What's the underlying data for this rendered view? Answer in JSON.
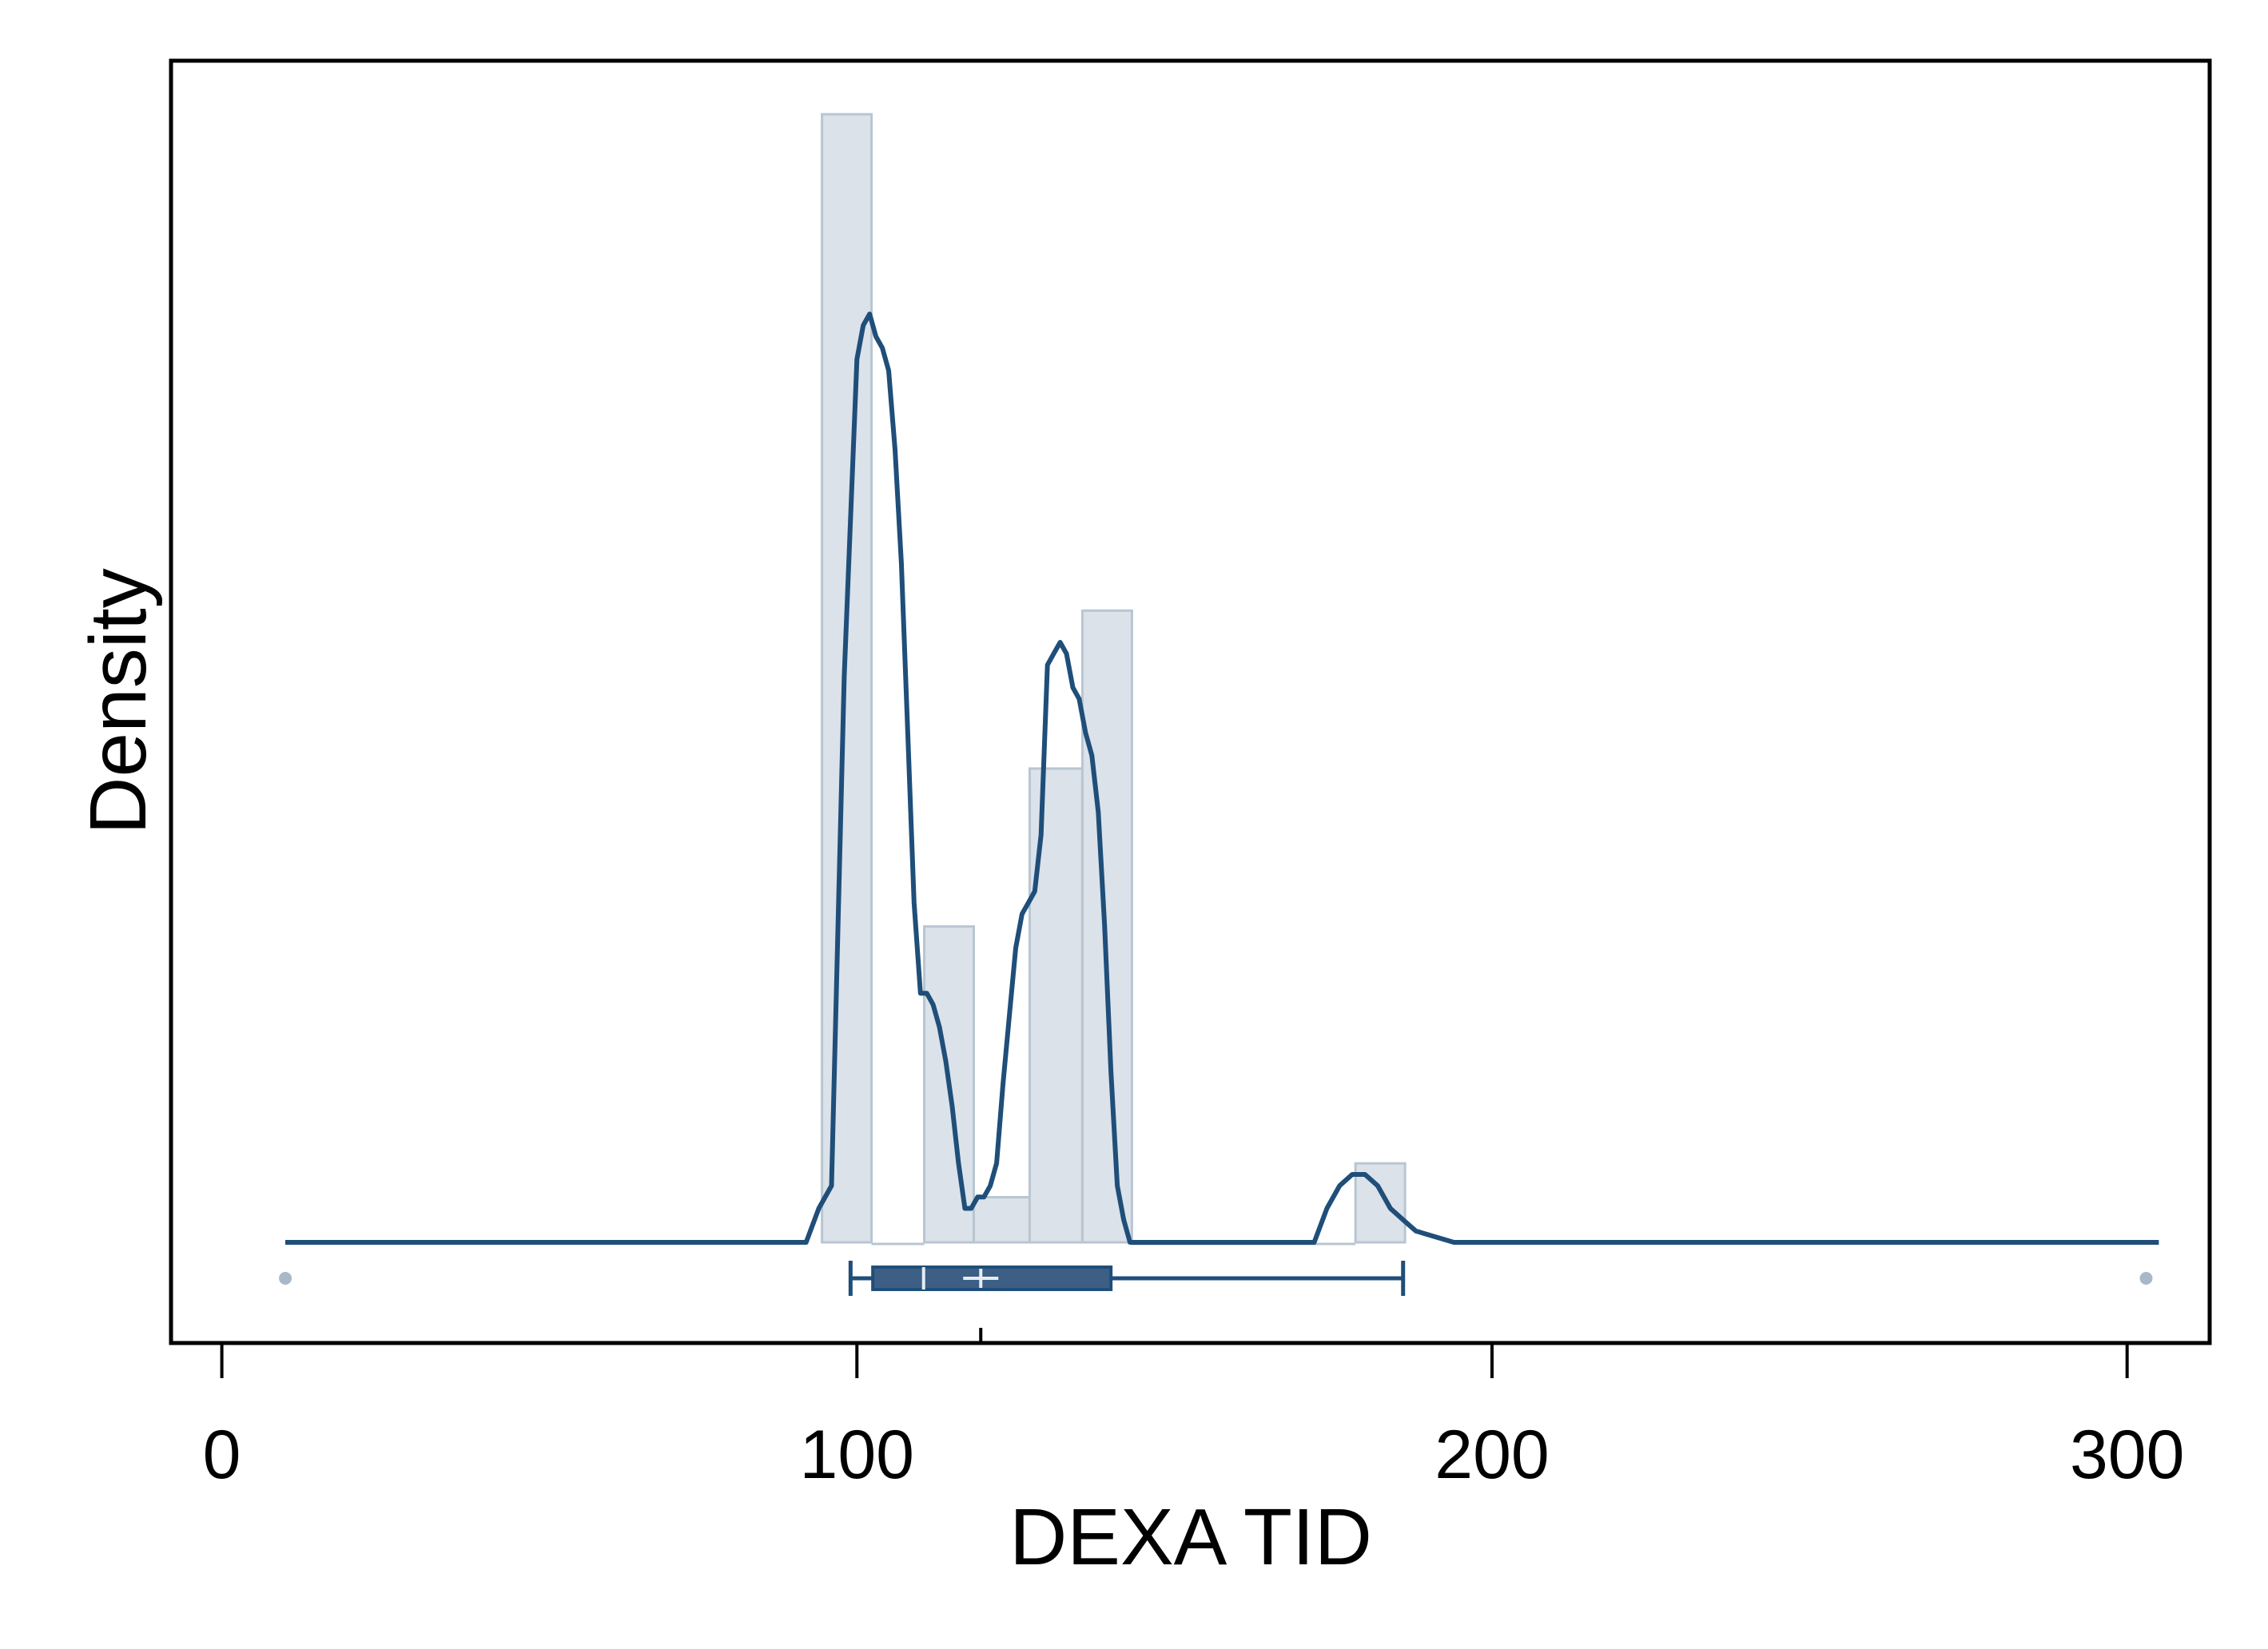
{
  "chart_data": {
    "type": "histogram",
    "xlabel": "DEXA TID",
    "ylabel": "Density",
    "xlim": [
      -8,
      313
    ],
    "x_ticks": [
      0,
      100,
      200,
      300
    ],
    "x_tick_labels": [
      "0",
      "100",
      "200",
      "300"
    ],
    "y_ticks_shown": false,
    "grid": false,
    "histogram": {
      "bins": [
        {
          "x0": 94.5,
          "x1": 102.3,
          "height": 100
        },
        {
          "x0": 102.3,
          "x1": 110.6,
          "height": 0
        },
        {
          "x0": 110.6,
          "x1": 118.4,
          "height": 28
        },
        {
          "x0": 118.4,
          "x1": 127.2,
          "height": 4
        },
        {
          "x0": 127.2,
          "x1": 135.5,
          "height": 42
        },
        {
          "x0": 135.5,
          "x1": 143.3,
          "height": 56
        },
        {
          "x0": 143.3,
          "x1": 178.5,
          "height": 0
        },
        {
          "x0": 178.5,
          "x1": 186.3,
          "height": 7
        }
      ]
    },
    "density_curve": {
      "x": [
        10,
        18,
        60,
        92,
        94,
        96,
        98,
        100,
        101,
        102,
        103,
        104,
        105,
        106,
        107,
        108,
        109,
        110,
        111,
        112,
        113,
        114,
        115,
        116,
        117,
        118,
        119,
        120,
        121,
        122,
        123,
        124,
        125,
        126,
        127,
        128,
        129,
        130,
        131,
        132,
        133,
        134,
        135,
        136,
        137,
        138,
        139,
        140,
        141,
        142,
        143,
        144,
        145,
        146,
        147,
        148,
        152,
        160,
        172,
        174,
        176,
        178,
        180,
        182,
        184,
        186,
        188,
        194,
        300,
        305
      ],
      "y": [
        0,
        0,
        0,
        0,
        3,
        5,
        50,
        78,
        81,
        82,
        80,
        79,
        77,
        70,
        60,
        45,
        30,
        22,
        22,
        21,
        19,
        16,
        12,
        7,
        3,
        3,
        4,
        4,
        5,
        7,
        14,
        20,
        26,
        29,
        30,
        31,
        36,
        51,
        52,
        53,
        52,
        49,
        48,
        45,
        43,
        38,
        28,
        15,
        5,
        2,
        0,
        0,
        0,
        0,
        0,
        0,
        0,
        0,
        0,
        3,
        5,
        6,
        6,
        5,
        3,
        2,
        1,
        0,
        0,
        0
      ]
    },
    "boxplot": {
      "whisker_low": 99,
      "q1": 102.5,
      "median": 110.5,
      "mean": 119.5,
      "q3": 140,
      "whisker_high": 186,
      "outliers": [
        10,
        303
      ]
    },
    "colors": {
      "line": "#1f4e79",
      "bar_fill": "#dbe2ea",
      "bar_edge": "#b8c6d2",
      "box_fill": "#3d5f86",
      "box_line": "#1f4e79",
      "outlier": "#a9b8c8"
    }
  }
}
